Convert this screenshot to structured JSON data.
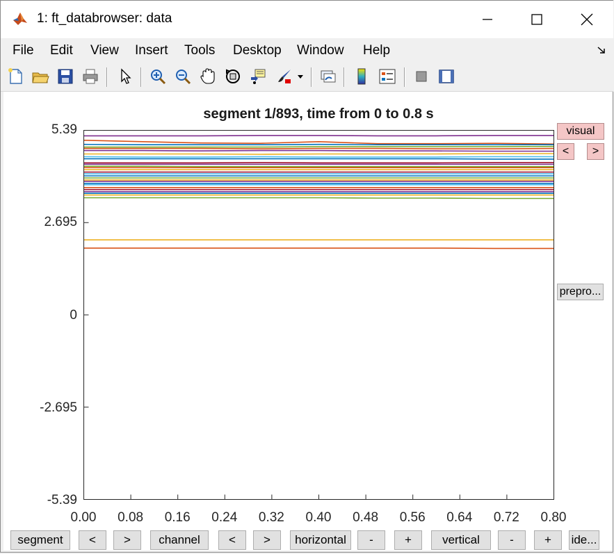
{
  "window": {
    "title": "1: ft_databrowser: data"
  },
  "menu": [
    "File",
    "Edit",
    "View",
    "Insert",
    "Tools",
    "Desktop",
    "Window",
    "Help"
  ],
  "toolbar": {
    "icons": [
      "new-figure-icon",
      "open-file-icon",
      "save-icon",
      "print-icon",
      "pointer-icon",
      "zoom-in-icon",
      "zoom-out-icon",
      "pan-hand-icon",
      "rotate-3d-icon",
      "data-cursor-icon",
      "brush-icon",
      "link-plot-icon",
      "colorbar-icon",
      "legend-icon",
      "hide-plot-tools-icon",
      "show-plot-tools-icon"
    ]
  },
  "plot": {
    "title": "segment 1/893, time from 0 to 0.8 s",
    "yticks": [
      "5.39",
      "2.695",
      "0",
      "-2.695",
      "-5.39"
    ],
    "xticks": [
      "0.00",
      "0.08",
      "0.16",
      "0.24",
      "0.32",
      "0.40",
      "0.48",
      "0.56",
      "0.64",
      "0.72",
      "0.80"
    ]
  },
  "side_buttons": {
    "visual": "visual",
    "prev": "<",
    "next": ">",
    "preproc": "prepro..."
  },
  "bottom_buttons": [
    "segment",
    "<",
    ">",
    "channel",
    "<",
    ">",
    "horizontal",
    "-",
    "+",
    "vertical",
    "-",
    "+",
    "ide..."
  ],
  "chart_data": {
    "type": "line",
    "title": "segment 1/893, time from 0 to 0.8 s",
    "xlabel": "",
    "ylabel": "",
    "xlim": [
      0,
      0.8
    ],
    "ylim": [
      -5.39,
      5.39
    ],
    "x": [
      0,
      0.1,
      0.2,
      0.3,
      0.4,
      0.5,
      0.6,
      0.7,
      0.8
    ],
    "series": [
      {
        "color": "#7e2f8e",
        "values": [
          5.23,
          5.23,
          5.23,
          5.24,
          5.24,
          5.23,
          5.23,
          5.24,
          5.24
        ]
      },
      {
        "color": "#d95319",
        "values": [
          5.1,
          5.06,
          5.02,
          5.01,
          5.06,
          5.0,
          5.0,
          5.01,
          4.99
        ]
      },
      {
        "color": "#0072bd",
        "values": [
          4.98,
          4.97,
          4.97,
          4.97,
          4.98,
          4.97,
          4.97,
          4.97,
          4.97
        ]
      },
      {
        "color": "#77ac30",
        "values": [
          4.9,
          4.9,
          4.9,
          4.9,
          4.91,
          4.91,
          4.91,
          4.91,
          4.92
        ]
      },
      {
        "color": "#d95319",
        "values": [
          4.86,
          4.86,
          4.86,
          4.85,
          4.86,
          4.86,
          4.85,
          4.85,
          4.86
        ]
      },
      {
        "color": "#7e2f8e",
        "values": [
          4.8,
          4.8,
          4.79,
          4.8,
          4.8,
          4.79,
          4.79,
          4.78,
          4.78
        ]
      },
      {
        "color": "#edb120",
        "values": [
          4.7,
          4.7,
          4.7,
          4.69,
          4.7,
          4.7,
          4.7,
          4.71,
          4.71
        ]
      },
      {
        "color": "#4dbeee",
        "values": [
          4.62,
          4.61,
          4.61,
          4.62,
          4.61,
          4.61,
          4.61,
          4.62,
          4.62
        ]
      },
      {
        "color": "#0072bd",
        "values": [
          4.56,
          4.56,
          4.56,
          4.56,
          4.56,
          4.56,
          4.56,
          4.55,
          4.55
        ]
      },
      {
        "color": "#a2142f",
        "values": [
          4.44,
          4.44,
          4.44,
          4.45,
          4.44,
          4.44,
          4.44,
          4.45,
          4.45
        ]
      },
      {
        "color": "#7e2f8e",
        "values": [
          4.4,
          4.4,
          4.4,
          4.4,
          4.4,
          4.4,
          4.4,
          4.4,
          4.4
        ]
      },
      {
        "color": "#77ac30",
        "values": [
          4.34,
          4.34,
          4.33,
          4.33,
          4.33,
          4.33,
          4.33,
          4.33,
          4.33
        ]
      },
      {
        "color": "#d95319",
        "values": [
          4.3,
          4.3,
          4.3,
          4.3,
          4.3,
          4.3,
          4.3,
          4.3,
          4.3
        ]
      },
      {
        "color": "#edb120",
        "values": [
          4.24,
          4.24,
          4.24,
          4.24,
          4.24,
          4.24,
          4.24,
          4.24,
          4.24
        ]
      },
      {
        "color": "#a2142f",
        "values": [
          4.17,
          4.17,
          4.17,
          4.17,
          4.17,
          4.17,
          4.17,
          4.17,
          4.17
        ]
      },
      {
        "color": "#4dbeee",
        "values": [
          4.12,
          4.12,
          4.12,
          4.12,
          4.12,
          4.12,
          4.12,
          4.12,
          4.12
        ]
      },
      {
        "color": "#0072bd",
        "values": [
          4.06,
          4.06,
          4.06,
          4.06,
          4.06,
          4.06,
          4.06,
          4.06,
          4.06
        ]
      },
      {
        "color": "#77ac30",
        "values": [
          4.0,
          4.0,
          4.0,
          4.0,
          4.0,
          4.0,
          4.0,
          4.0,
          4.0
        ]
      },
      {
        "color": "#edb120",
        "values": [
          3.94,
          3.94,
          3.94,
          3.94,
          3.94,
          3.94,
          3.94,
          3.94,
          3.94
        ]
      },
      {
        "color": "#7e2f8e",
        "values": [
          3.9,
          3.9,
          3.9,
          3.9,
          3.9,
          3.9,
          3.9,
          3.9,
          3.9
        ]
      },
      {
        "color": "#0072bd",
        "values": [
          3.84,
          3.84,
          3.84,
          3.84,
          3.84,
          3.84,
          3.84,
          3.84,
          3.84
        ]
      },
      {
        "color": "#4dbeee",
        "values": [
          3.8,
          3.8,
          3.8,
          3.8,
          3.8,
          3.8,
          3.8,
          3.8,
          3.8
        ]
      },
      {
        "color": "#d95319",
        "values": [
          3.72,
          3.72,
          3.72,
          3.72,
          3.72,
          3.72,
          3.72,
          3.72,
          3.72
        ]
      },
      {
        "color": "#a2142f",
        "values": [
          3.66,
          3.66,
          3.66,
          3.66,
          3.66,
          3.66,
          3.66,
          3.66,
          3.66
        ]
      },
      {
        "color": "#7e2f8e",
        "values": [
          3.6,
          3.6,
          3.6,
          3.6,
          3.6,
          3.6,
          3.6,
          3.6,
          3.6
        ]
      },
      {
        "color": "#0072bd",
        "values": [
          3.55,
          3.55,
          3.55,
          3.55,
          3.55,
          3.55,
          3.55,
          3.55,
          3.55
        ]
      },
      {
        "color": "#edb120",
        "values": [
          3.5,
          3.5,
          3.5,
          3.5,
          3.5,
          3.5,
          3.5,
          3.5,
          3.5
        ]
      },
      {
        "color": "#77ac30",
        "values": [
          3.42,
          3.42,
          3.42,
          3.42,
          3.42,
          3.41,
          3.41,
          3.4,
          3.4
        ]
      },
      {
        "color": "#edb120",
        "values": [
          2.19,
          2.19,
          2.19,
          2.19,
          2.19,
          2.19,
          2.19,
          2.19,
          2.19
        ]
      },
      {
        "color": "#d95319",
        "values": [
          1.95,
          1.95,
          1.95,
          1.95,
          1.95,
          1.95,
          1.95,
          1.94,
          1.94
        ]
      }
    ]
  }
}
